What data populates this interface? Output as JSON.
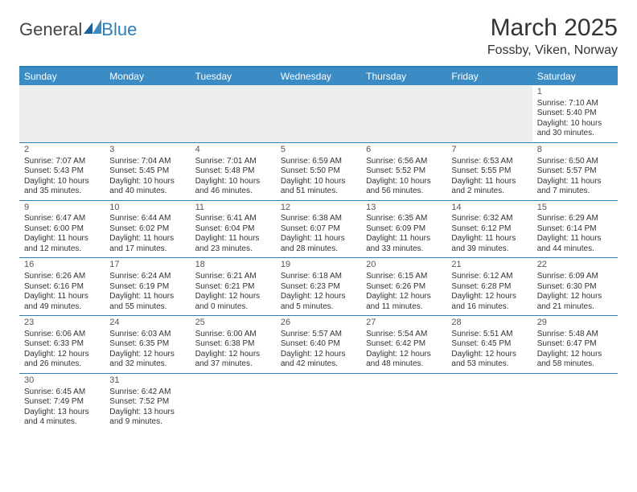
{
  "logo": {
    "part1": "General",
    "part2": "Blue"
  },
  "header": {
    "month": "March 2025",
    "location": "Fossby, Viken, Norway"
  },
  "colors": {
    "header_bar": "#3b8bc4",
    "border": "#2c7fb8",
    "empty_cell": "#eeeeee",
    "text": "#333333",
    "background": "#ffffff"
  },
  "day_names": [
    "Sunday",
    "Monday",
    "Tuesday",
    "Wednesday",
    "Thursday",
    "Friday",
    "Saturday"
  ],
  "weeks": [
    [
      null,
      null,
      null,
      null,
      null,
      null,
      {
        "n": "1",
        "sr": "Sunrise: 7:10 AM",
        "ss": "Sunset: 5:40 PM",
        "d1": "Daylight: 10 hours",
        "d2": "and 30 minutes."
      }
    ],
    [
      {
        "n": "2",
        "sr": "Sunrise: 7:07 AM",
        "ss": "Sunset: 5:43 PM",
        "d1": "Daylight: 10 hours",
        "d2": "and 35 minutes."
      },
      {
        "n": "3",
        "sr": "Sunrise: 7:04 AM",
        "ss": "Sunset: 5:45 PM",
        "d1": "Daylight: 10 hours",
        "d2": "and 40 minutes."
      },
      {
        "n": "4",
        "sr": "Sunrise: 7:01 AM",
        "ss": "Sunset: 5:48 PM",
        "d1": "Daylight: 10 hours",
        "d2": "and 46 minutes."
      },
      {
        "n": "5",
        "sr": "Sunrise: 6:59 AM",
        "ss": "Sunset: 5:50 PM",
        "d1": "Daylight: 10 hours",
        "d2": "and 51 minutes."
      },
      {
        "n": "6",
        "sr": "Sunrise: 6:56 AM",
        "ss": "Sunset: 5:52 PM",
        "d1": "Daylight: 10 hours",
        "d2": "and 56 minutes."
      },
      {
        "n": "7",
        "sr": "Sunrise: 6:53 AM",
        "ss": "Sunset: 5:55 PM",
        "d1": "Daylight: 11 hours",
        "d2": "and 2 minutes."
      },
      {
        "n": "8",
        "sr": "Sunrise: 6:50 AM",
        "ss": "Sunset: 5:57 PM",
        "d1": "Daylight: 11 hours",
        "d2": "and 7 minutes."
      }
    ],
    [
      {
        "n": "9",
        "sr": "Sunrise: 6:47 AM",
        "ss": "Sunset: 6:00 PM",
        "d1": "Daylight: 11 hours",
        "d2": "and 12 minutes."
      },
      {
        "n": "10",
        "sr": "Sunrise: 6:44 AM",
        "ss": "Sunset: 6:02 PM",
        "d1": "Daylight: 11 hours",
        "d2": "and 17 minutes."
      },
      {
        "n": "11",
        "sr": "Sunrise: 6:41 AM",
        "ss": "Sunset: 6:04 PM",
        "d1": "Daylight: 11 hours",
        "d2": "and 23 minutes."
      },
      {
        "n": "12",
        "sr": "Sunrise: 6:38 AM",
        "ss": "Sunset: 6:07 PM",
        "d1": "Daylight: 11 hours",
        "d2": "and 28 minutes."
      },
      {
        "n": "13",
        "sr": "Sunrise: 6:35 AM",
        "ss": "Sunset: 6:09 PM",
        "d1": "Daylight: 11 hours",
        "d2": "and 33 minutes."
      },
      {
        "n": "14",
        "sr": "Sunrise: 6:32 AM",
        "ss": "Sunset: 6:12 PM",
        "d1": "Daylight: 11 hours",
        "d2": "and 39 minutes."
      },
      {
        "n": "15",
        "sr": "Sunrise: 6:29 AM",
        "ss": "Sunset: 6:14 PM",
        "d1": "Daylight: 11 hours",
        "d2": "and 44 minutes."
      }
    ],
    [
      {
        "n": "16",
        "sr": "Sunrise: 6:26 AM",
        "ss": "Sunset: 6:16 PM",
        "d1": "Daylight: 11 hours",
        "d2": "and 49 minutes."
      },
      {
        "n": "17",
        "sr": "Sunrise: 6:24 AM",
        "ss": "Sunset: 6:19 PM",
        "d1": "Daylight: 11 hours",
        "d2": "and 55 minutes."
      },
      {
        "n": "18",
        "sr": "Sunrise: 6:21 AM",
        "ss": "Sunset: 6:21 PM",
        "d1": "Daylight: 12 hours",
        "d2": "and 0 minutes."
      },
      {
        "n": "19",
        "sr": "Sunrise: 6:18 AM",
        "ss": "Sunset: 6:23 PM",
        "d1": "Daylight: 12 hours",
        "d2": "and 5 minutes."
      },
      {
        "n": "20",
        "sr": "Sunrise: 6:15 AM",
        "ss": "Sunset: 6:26 PM",
        "d1": "Daylight: 12 hours",
        "d2": "and 11 minutes."
      },
      {
        "n": "21",
        "sr": "Sunrise: 6:12 AM",
        "ss": "Sunset: 6:28 PM",
        "d1": "Daylight: 12 hours",
        "d2": "and 16 minutes."
      },
      {
        "n": "22",
        "sr": "Sunrise: 6:09 AM",
        "ss": "Sunset: 6:30 PM",
        "d1": "Daylight: 12 hours",
        "d2": "and 21 minutes."
      }
    ],
    [
      {
        "n": "23",
        "sr": "Sunrise: 6:06 AM",
        "ss": "Sunset: 6:33 PM",
        "d1": "Daylight: 12 hours",
        "d2": "and 26 minutes."
      },
      {
        "n": "24",
        "sr": "Sunrise: 6:03 AM",
        "ss": "Sunset: 6:35 PM",
        "d1": "Daylight: 12 hours",
        "d2": "and 32 minutes."
      },
      {
        "n": "25",
        "sr": "Sunrise: 6:00 AM",
        "ss": "Sunset: 6:38 PM",
        "d1": "Daylight: 12 hours",
        "d2": "and 37 minutes."
      },
      {
        "n": "26",
        "sr": "Sunrise: 5:57 AM",
        "ss": "Sunset: 6:40 PM",
        "d1": "Daylight: 12 hours",
        "d2": "and 42 minutes."
      },
      {
        "n": "27",
        "sr": "Sunrise: 5:54 AM",
        "ss": "Sunset: 6:42 PM",
        "d1": "Daylight: 12 hours",
        "d2": "and 48 minutes."
      },
      {
        "n": "28",
        "sr": "Sunrise: 5:51 AM",
        "ss": "Sunset: 6:45 PM",
        "d1": "Daylight: 12 hours",
        "d2": "and 53 minutes."
      },
      {
        "n": "29",
        "sr": "Sunrise: 5:48 AM",
        "ss": "Sunset: 6:47 PM",
        "d1": "Daylight: 12 hours",
        "d2": "and 58 minutes."
      }
    ],
    [
      {
        "n": "30",
        "sr": "Sunrise: 6:45 AM",
        "ss": "Sunset: 7:49 PM",
        "d1": "Daylight: 13 hours",
        "d2": "and 4 minutes."
      },
      {
        "n": "31",
        "sr": "Sunrise: 6:42 AM",
        "ss": "Sunset: 7:52 PM",
        "d1": "Daylight: 13 hours",
        "d2": "and 9 minutes."
      },
      null,
      null,
      null,
      null,
      null
    ]
  ]
}
